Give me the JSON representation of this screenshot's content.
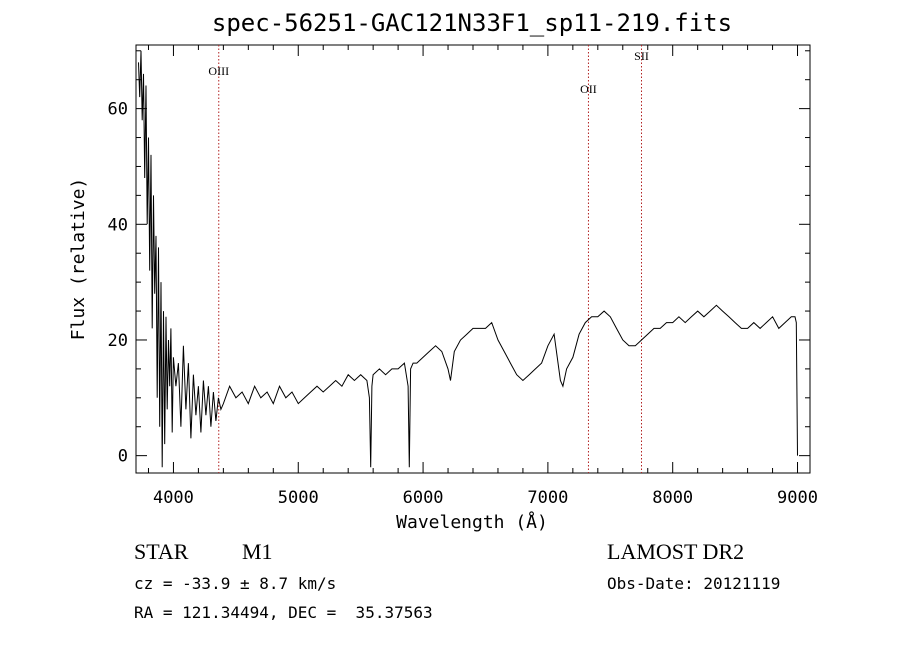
{
  "chart_data": {
    "type": "line",
    "title": "spec-56251-GAC121N33F1_sp11-219.fits",
    "xlabel": "Wavelength (Å)",
    "ylabel": "Flux (relative)",
    "xlim": [
      3700,
      9100
    ],
    "ylim": [
      -3,
      71
    ],
    "xticks": [
      4000,
      5000,
      6000,
      7000,
      8000,
      9000
    ],
    "yticks": [
      0,
      20,
      40,
      60
    ],
    "line_color": "#000000",
    "marker_color": "#b22222",
    "lines": [
      {
        "label": "OIII",
        "x": 4363
      },
      {
        "label": "OII",
        "x": 7325
      },
      {
        "label": "SII",
        "x": 7750
      }
    ],
    "spectrum": {
      "x": [
        3720,
        3730,
        3740,
        3750,
        3760,
        3770,
        3780,
        3790,
        3800,
        3810,
        3820,
        3830,
        3840,
        3850,
        3860,
        3870,
        3880,
        3890,
        3900,
        3910,
        3920,
        3930,
        3940,
        3950,
        3960,
        3970,
        3980,
        3990,
        4000,
        4020,
        4040,
        4060,
        4080,
        4100,
        4120,
        4140,
        4160,
        4180,
        4200,
        4220,
        4240,
        4260,
        4280,
        4300,
        4320,
        4340,
        4360,
        4380,
        4400,
        4450,
        4500,
        4550,
        4600,
        4650,
        4700,
        4750,
        4800,
        4850,
        4900,
        4950,
        5000,
        5050,
        5100,
        5150,
        5200,
        5250,
        5300,
        5350,
        5400,
        5450,
        5500,
        5550,
        5570,
        5580,
        5590,
        5600,
        5650,
        5700,
        5750,
        5800,
        5850,
        5880,
        5890,
        5900,
        5920,
        5950,
        6000,
        6050,
        6100,
        6150,
        6200,
        6220,
        6250,
        6300,
        6350,
        6400,
        6450,
        6500,
        6550,
        6600,
        6650,
        6700,
        6750,
        6800,
        6850,
        6900,
        6950,
        7000,
        7050,
        7100,
        7120,
        7150,
        7200,
        7250,
        7300,
        7350,
        7400,
        7450,
        7500,
        7550,
        7600,
        7650,
        7700,
        7750,
        7800,
        7850,
        7900,
        7950,
        8000,
        8050,
        8100,
        8150,
        8200,
        8250,
        8300,
        8350,
        8400,
        8450,
        8500,
        8550,
        8600,
        8650,
        8700,
        8750,
        8800,
        8850,
        8900,
        8950,
        8980,
        8990,
        9000
      ],
      "y": [
        68,
        62,
        70,
        58,
        66,
        48,
        64,
        40,
        55,
        32,
        52,
        22,
        45,
        28,
        38,
        10,
        36,
        5,
        30,
        -2,
        25,
        2,
        24,
        8,
        20,
        12,
        22,
        4,
        17,
        12,
        16,
        5,
        19,
        8,
        16,
        3,
        14,
        7,
        12,
        4,
        13,
        7,
        12,
        5,
        11,
        6,
        10,
        8,
        9,
        12,
        10,
        11,
        9,
        12,
        10,
        11,
        9,
        12,
        10,
        11,
        9,
        10,
        11,
        12,
        11,
        12,
        13,
        12,
        14,
        13,
        14,
        13,
        10,
        -2,
        12,
        14,
        15,
        14,
        15,
        15,
        16,
        12,
        -2,
        15,
        16,
        16,
        17,
        18,
        19,
        18,
        15,
        13,
        18,
        20,
        21,
        22,
        22,
        22,
        23,
        20,
        18,
        16,
        14,
        13,
        14,
        15,
        16,
        19,
        21,
        13,
        12,
        15,
        17,
        21,
        23,
        24,
        24,
        25,
        24,
        22,
        20,
        19,
        19,
        20,
        21,
        22,
        22,
        23,
        23,
        24,
        23,
        24,
        25,
        24,
        25,
        26,
        25,
        24,
        23,
        22,
        22,
        23,
        22,
        23,
        24,
        22,
        23,
        24,
        24,
        23,
        0
      ]
    }
  },
  "footer": {
    "class_label": "STAR",
    "subclass": "M1",
    "cz": "cz = -33.9 ± 8.7 km/s",
    "coords": "RA = 121.34494, DEC =  35.37563",
    "survey": "LAMOST DR2",
    "obs_date": "Obs-Date: 20121119"
  }
}
